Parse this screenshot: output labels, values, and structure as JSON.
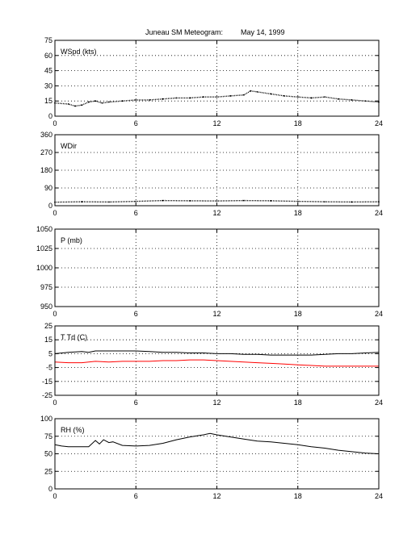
{
  "figure": {
    "title_left": "Juneau SM Meteogram:",
    "title_right": "May 14, 1999"
  },
  "chart_data": [
    {
      "type": "scatter",
      "label": "WSpd (kts)",
      "xlim": [
        0,
        24
      ],
      "ylim": [
        0,
        75
      ],
      "xticks": [
        0,
        6,
        12,
        18,
        24
      ],
      "yticks": [
        0,
        15,
        30,
        45,
        60,
        75
      ],
      "grid": true,
      "series": [
        {
          "color": "#000000",
          "x": [
            0,
            1,
            1.5,
            2,
            2.5,
            3,
            3.5,
            4,
            5,
            6,
            7,
            8,
            9,
            10,
            11,
            12,
            13,
            14,
            14.5,
            15,
            16,
            17,
            18,
            19,
            20,
            21,
            22,
            23,
            24
          ],
          "y": [
            13,
            12,
            10,
            11,
            14,
            15,
            13,
            14,
            15,
            16,
            16,
            17,
            18,
            18,
            19,
            19,
            20,
            21,
            25,
            24,
            22,
            20,
            19,
            18,
            19,
            17,
            16,
            15,
            14
          ]
        }
      ]
    },
    {
      "type": "scatter",
      "label": "WDir",
      "xlim": [
        0,
        24
      ],
      "ylim": [
        0,
        360
      ],
      "xticks": [
        0,
        6,
        12,
        18,
        24
      ],
      "yticks": [
        0,
        90,
        180,
        270,
        360
      ],
      "grid": true,
      "series": [
        {
          "color": "#000000",
          "x": [
            0,
            2,
            4,
            6,
            8,
            10,
            12,
            14,
            16,
            18,
            20,
            22,
            24
          ],
          "y": [
            18,
            20,
            19,
            22,
            26,
            25,
            24,
            26,
            25,
            22,
            20,
            19,
            20
          ]
        }
      ]
    },
    {
      "type": "line",
      "label": "P (mb)",
      "xlim": [
        0,
        24
      ],
      "ylim": [
        950,
        1050
      ],
      "xticks": [
        0,
        6,
        12,
        18,
        24
      ],
      "yticks": [
        950,
        975,
        1000,
        1025,
        1050
      ],
      "grid": true,
      "series": []
    },
    {
      "type": "line",
      "label": "T Td (C)",
      "xlim": [
        0,
        24
      ],
      "ylim": [
        -25,
        25
      ],
      "xticks": [
        0,
        6,
        12,
        18,
        24
      ],
      "yticks": [
        -25,
        -15,
        -5,
        5,
        15,
        25
      ],
      "grid": true,
      "series": [
        {
          "color": "#000000",
          "x": [
            0,
            1,
            2,
            2.5,
            3,
            4,
            5,
            6,
            7,
            8,
            9,
            10,
            11,
            12,
            13,
            14,
            15,
            16,
            17,
            18,
            19,
            20,
            21,
            22,
            23,
            24
          ],
          "y": [
            5,
            6,
            6.5,
            6,
            7,
            7,
            7,
            7,
            6.5,
            6,
            6,
            5.5,
            5.5,
            5,
            5,
            4.5,
            4.5,
            4,
            4,
            4,
            4,
            4.5,
            5,
            5,
            5.5,
            6
          ]
        },
        {
          "color": "#ff0000",
          "x": [
            0,
            1,
            2,
            3,
            4,
            5,
            6,
            7,
            8,
            9,
            10,
            11,
            12,
            13,
            14,
            15,
            16,
            17,
            18,
            19,
            20,
            21,
            22,
            23,
            24
          ],
          "y": [
            -1,
            -1.5,
            -1.5,
            -0.5,
            -1,
            -0.5,
            -0.5,
            -0.5,
            0,
            0,
            0.5,
            0.5,
            0,
            -0.5,
            -1,
            -1.5,
            -2,
            -2.5,
            -3,
            -3.5,
            -4,
            -4,
            -4,
            -4,
            -4
          ]
        }
      ]
    },
    {
      "type": "line",
      "label": "RH (%)",
      "xlim": [
        0,
        24
      ],
      "ylim": [
        0,
        100
      ],
      "xticks": [
        0,
        6,
        12,
        18,
        24
      ],
      "yticks": [
        0,
        25,
        50,
        75,
        100
      ],
      "grid": true,
      "series": [
        {
          "color": "#000000",
          "x": [
            0,
            0.5,
            1,
            2,
            2.5,
            3,
            3.3,
            3.6,
            4,
            4.3,
            5,
            6,
            7,
            8,
            9,
            10,
            11,
            11.5,
            12,
            13,
            14,
            15,
            16,
            17,
            18,
            19,
            20,
            21,
            22,
            23,
            24
          ],
          "y": [
            63,
            61,
            60,
            60,
            60,
            69,
            64,
            70,
            66,
            67,
            62,
            61,
            62,
            65,
            70,
            74,
            77,
            79,
            77,
            74,
            71,
            68,
            67,
            65,
            63,
            60,
            58,
            55,
            53,
            51,
            50
          ]
        }
      ]
    }
  ]
}
